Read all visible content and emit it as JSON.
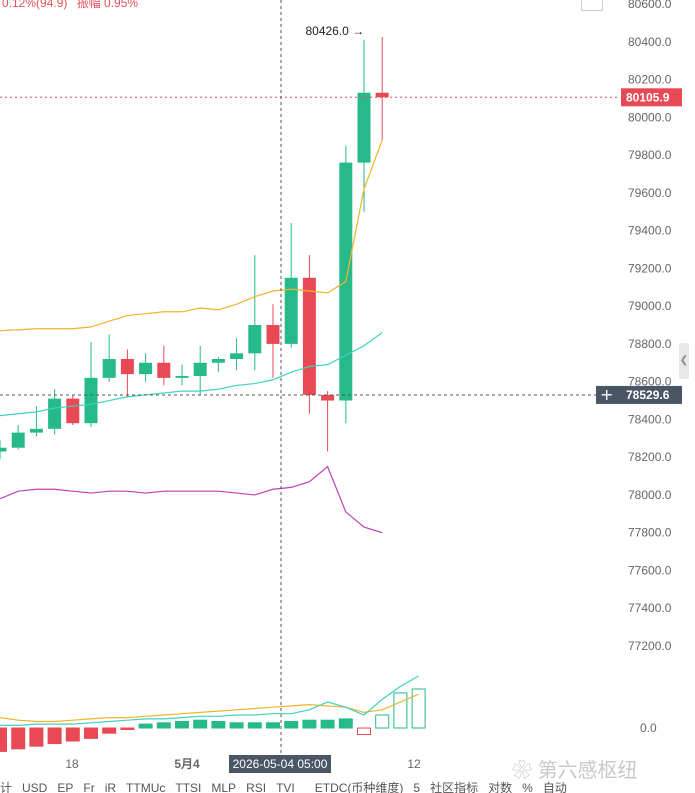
{
  "header": {
    "change_text": "0.12%(94.9)",
    "amplitude_text": "振幅 0.95%"
  },
  "crosshair": {
    "time_label": "2026-05-04 05:00",
    "price_label": "78529.6"
  },
  "last_price_label": "80105.9",
  "high_marker": "80426.0",
  "colors": {
    "up": "#26ba8a",
    "down": "#e84a55",
    "ma_yellow": "#f0b429",
    "ma_teal": "#3ed3c0",
    "ma_purple": "#c040b0",
    "price_tag": "#e84a55",
    "crosshair_tag": "#4a5566"
  },
  "chart_data": {
    "type": "candlestick",
    "y_ticks": [
      "80600.0",
      "80400.0",
      "80200.0",
      "80000.0",
      "79800.0",
      "79600.0",
      "79400.0",
      "79200.0",
      "79000.0",
      "78800.0",
      "78600.0",
      "78400.0",
      "78200.0",
      "78000.0",
      "77800.0",
      "77600.0",
      "77400.0",
      "77200.0"
    ],
    "x_ticks": [
      "18",
      "5月4",
      "12"
    ],
    "ylim": [
      77100,
      80620
    ],
    "candles": [
      {
        "o": 78230,
        "h": 78290,
        "l": 78190,
        "c": 78250
      },
      {
        "o": 78250,
        "h": 78370,
        "l": 78240,
        "c": 78330
      },
      {
        "o": 78330,
        "h": 78470,
        "l": 78310,
        "c": 78350
      },
      {
        "o": 78350,
        "h": 78560,
        "l": 78320,
        "c": 78510
      },
      {
        "o": 78510,
        "h": 78530,
        "l": 78370,
        "c": 78380
      },
      {
        "o": 78380,
        "h": 78810,
        "l": 78360,
        "c": 78620
      },
      {
        "o": 78620,
        "h": 78850,
        "l": 78600,
        "c": 78720
      },
      {
        "o": 78720,
        "h": 78770,
        "l": 78520,
        "c": 78640
      },
      {
        "o": 78640,
        "h": 78750,
        "l": 78600,
        "c": 78700
      },
      {
        "o": 78700,
        "h": 78790,
        "l": 78580,
        "c": 78620
      },
      {
        "o": 78620,
        "h": 78690,
        "l": 78580,
        "c": 78630
      },
      {
        "o": 78630,
        "h": 78790,
        "l": 78530,
        "c": 78700
      },
      {
        "o": 78700,
        "h": 78730,
        "l": 78650,
        "c": 78720
      },
      {
        "o": 78720,
        "h": 78830,
        "l": 78660,
        "c": 78750
      },
      {
        "o": 78750,
        "h": 79270,
        "l": 78660,
        "c": 78900
      },
      {
        "o": 78900,
        "h": 79010,
        "l": 78620,
        "c": 78800
      },
      {
        "o": 78800,
        "h": 79440,
        "l": 78780,
        "c": 79150
      },
      {
        "o": 79150,
        "h": 79270,
        "l": 78430,
        "c": 78530
      },
      {
        "o": 78530,
        "h": 78550,
        "l": 78230,
        "c": 78500
      },
      {
        "o": 78500,
        "h": 79850,
        "l": 78380,
        "c": 79760
      },
      {
        "o": 79760,
        "h": 80410,
        "l": 79500,
        "c": 80130
      },
      {
        "o": 80130,
        "h": 80426,
        "l": 79880,
        "c": 80106
      }
    ],
    "ma_yellow": [
      78870,
      78875,
      78880,
      78880,
      78880,
      78890,
      78920,
      78950,
      78960,
      78970,
      78970,
      78990,
      78980,
      79010,
      79050,
      79080,
      79090,
      79080,
      79070,
      79130,
      79620,
      79880
    ],
    "ma_teal": [
      78420,
      78430,
      78440,
      78460,
      78470,
      78480,
      78500,
      78520,
      78530,
      78540,
      78550,
      78550,
      78560,
      78580,
      78590,
      78610,
      78650,
      78680,
      78690,
      78740,
      78790,
      78860
    ],
    "ma_purple": [
      77980,
      78020,
      78030,
      78030,
      78020,
      78010,
      78020,
      78020,
      78010,
      78020,
      78020,
      78020,
      78020,
      78010,
      78000,
      78030,
      78040,
      78070,
      78150,
      77910,
      77830,
      77800
    ],
    "volume": {
      "zero_label": "0.0",
      "bars": [
        -18,
        -16,
        -14,
        -12,
        -10,
        -8,
        -4,
        -1,
        3,
        4,
        5,
        6,
        5,
        4,
        4,
        4,
        5,
        6,
        6,
        7,
        -5,
        10,
        27,
        30
      ],
      "line_yellow": [
        8,
        6,
        5,
        5,
        6,
        7,
        8,
        8,
        9,
        10,
        11,
        12,
        13,
        14,
        15,
        16,
        17,
        18,
        17,
        16,
        12,
        14,
        20,
        26
      ],
      "line_teal": [
        2,
        2,
        3,
        3,
        3,
        4,
        5,
        6,
        7,
        7,
        8,
        9,
        9,
        10,
        10,
        11,
        11,
        14,
        20,
        16,
        10,
        22,
        32,
        40
      ]
    }
  },
  "bottom_bar": [
    "计",
    "USD",
    "EP",
    "Fr",
    "iR",
    "TTMUc",
    "TTSI",
    "MLP",
    "RSI",
    "TVI",
    "",
    "ETDC(币种维度)",
    "5",
    "社区指标",
    "对数",
    "%",
    "自动"
  ],
  "watermark": "第六感枢纽"
}
